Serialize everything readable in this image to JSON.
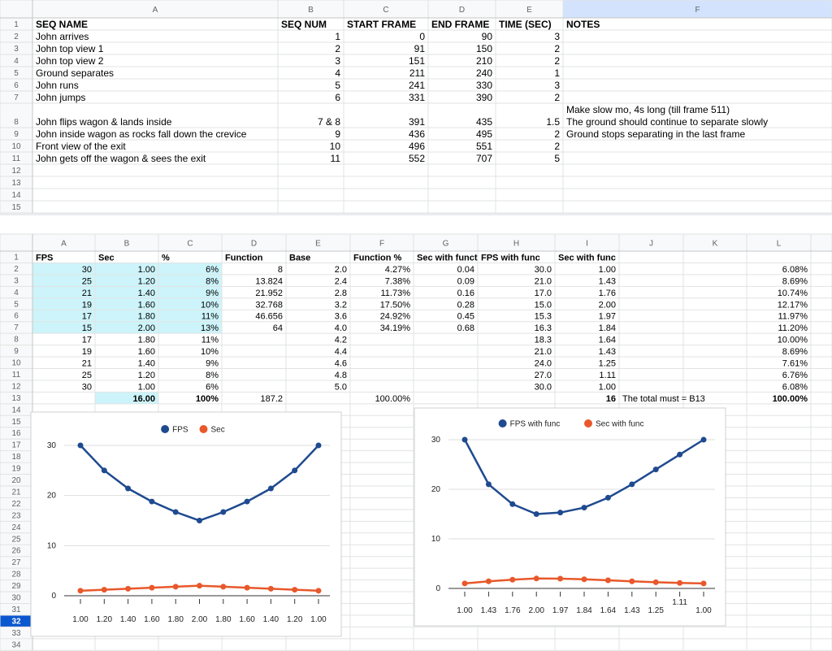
{
  "sheet1": {
    "columns": [
      "A",
      "B",
      "C",
      "D",
      "E",
      "F"
    ],
    "row_numbers": [
      1,
      2,
      3,
      4,
      5,
      6,
      7,
      8,
      9,
      10,
      11,
      12,
      13,
      14,
      15
    ],
    "rows": [
      [
        "SEQ NAME",
        "SEQ NUM",
        "START FRAME",
        "END FRAME",
        "TIME (SEC)",
        "NOTES"
      ],
      [
        "John arrives",
        "1",
        "0",
        "90",
        "3",
        null
      ],
      [
        "John top view 1",
        "2",
        "91",
        "150",
        "2",
        null
      ],
      [
        "John top view 2",
        "3",
        "151",
        "210",
        "2",
        null
      ],
      [
        "Ground separates",
        "4",
        "211",
        "240",
        "1",
        null
      ],
      [
        "John runs",
        "5",
        "241",
        "330",
        "3",
        null
      ],
      [
        "John jumps",
        "6",
        "331",
        "390",
        "2",
        null
      ],
      [
        "John flips wagon & lands inside",
        "7 & 8",
        "391",
        "435",
        "1.5",
        [
          "Make slow mo, 4s long (till frame 511)",
          "The ground should continue to separate slowly"
        ]
      ],
      [
        "John inside wagon as rocks fall down the crevice",
        "9",
        "436",
        "495",
        "2",
        "Ground stops separating in the last frame"
      ],
      [
        "Front view of the exit",
        "10",
        "496",
        "551",
        "2",
        null
      ],
      [
        "John gets off the wagon & sees the exit",
        "11",
        "552",
        "707",
        "5",
        null
      ]
    ]
  },
  "sheet2": {
    "columns": [
      "A",
      "B",
      "C",
      "D",
      "E",
      "F",
      "G",
      "H",
      "I",
      "J",
      "K",
      "L"
    ],
    "row_numbers": [
      1,
      2,
      3,
      4,
      5,
      6,
      7,
      8,
      9,
      10,
      11,
      12,
      13,
      14,
      15,
      16,
      17,
      18,
      19,
      20,
      21,
      22,
      23,
      24,
      25,
      26,
      27,
      28,
      29,
      30,
      31,
      32,
      33,
      34
    ],
    "rows": [
      [
        "FPS",
        "Sec",
        "%",
        "Function",
        "Base",
        "Function %",
        "Sec with funct",
        "FPS with func",
        "Sec with func",
        null,
        null,
        null
      ],
      [
        "30",
        "1.00",
        "6%",
        "8",
        "2.0",
        "4.27%",
        "0.04",
        "30.0",
        "1.00",
        null,
        null,
        "6.08%"
      ],
      [
        "25",
        "1.20",
        "8%",
        "13.824",
        "2.4",
        "7.38%",
        "0.09",
        "21.0",
        "1.43",
        null,
        null,
        "8.69%"
      ],
      [
        "21",
        "1.40",
        "9%",
        "21.952",
        "2.8",
        "11.73%",
        "0.16",
        "17.0",
        "1.76",
        null,
        null,
        "10.74%"
      ],
      [
        "19",
        "1.60",
        "10%",
        "32.768",
        "3.2",
        "17.50%",
        "0.28",
        "15.0",
        "2.00",
        null,
        null,
        "12.17%"
      ],
      [
        "17",
        "1.80",
        "11%",
        "46.656",
        "3.6",
        "24.92%",
        "0.45",
        "15.3",
        "1.97",
        null,
        null,
        "11.97%"
      ],
      [
        "15",
        "2.00",
        "13%",
        "64",
        "4.0",
        "34.19%",
        "0.68",
        "16.3",
        "1.84",
        null,
        null,
        "11.20%"
      ],
      [
        "17",
        "1.80",
        "11%",
        null,
        "4.2",
        null,
        null,
        "18.3",
        "1.64",
        null,
        null,
        "10.00%"
      ],
      [
        "19",
        "1.60",
        "10%",
        null,
        "4.4",
        null,
        null,
        "21.0",
        "1.43",
        null,
        null,
        "8.69%"
      ],
      [
        "21",
        "1.40",
        "9%",
        null,
        "4.6",
        null,
        null,
        "24.0",
        "1.25",
        null,
        null,
        "7.61%"
      ],
      [
        "25",
        "1.20",
        "8%",
        null,
        "4.8",
        null,
        null,
        "27.0",
        "1.11",
        null,
        null,
        "6.76%"
      ],
      [
        "30",
        "1.00",
        "6%",
        null,
        "5.0",
        null,
        null,
        "30.0",
        "1.00",
        null,
        null,
        "6.08%"
      ],
      [
        null,
        "16.00",
        "100%",
        "187.2",
        null,
        "100.00%",
        null,
        null,
        "16",
        "The total must = B13",
        null,
        "100.00%"
      ]
    ]
  },
  "chart_data": [
    {
      "type": "line",
      "legend": "top",
      "grid": true,
      "categories": [
        "1.00",
        "1.20",
        "1.40",
        "1.60",
        "1.80",
        "2.00",
        "1.80",
        "1.60",
        "1.40",
        "1.20",
        "1.00"
      ],
      "series": [
        {
          "name": "FPS",
          "color": "#1f4a8f",
          "values": [
            30,
            25,
            21.4,
            18.8,
            16.7,
            15,
            16.7,
            18.8,
            21.4,
            25,
            30
          ]
        },
        {
          "name": "Sec",
          "color": "#e8582b",
          "values": [
            1,
            1.2,
            1.4,
            1.6,
            1.8,
            2,
            1.8,
            1.6,
            1.4,
            1.2,
            1
          ]
        }
      ],
      "ylim": [
        0,
        30
      ],
      "yticks": [
        0,
        10,
        20,
        30
      ]
    },
    {
      "type": "line",
      "legend": "top",
      "grid": true,
      "categories": [
        "1.00",
        "1.43",
        "1.76",
        "2.00",
        "1.97",
        "1.84",
        "1.64",
        "1.43",
        "1.25",
        "1.11",
        "1.00"
      ],
      "series": [
        {
          "name": "FPS with func",
          "color": "#1f4a8f",
          "values": [
            30,
            21,
            17,
            15,
            15.3,
            16.3,
            18.3,
            21,
            24,
            27,
            30
          ]
        },
        {
          "name": "Sec with func",
          "color": "#e8582b",
          "values": [
            1,
            1.43,
            1.76,
            2,
            1.97,
            1.84,
            1.64,
            1.43,
            1.25,
            1.11,
            1
          ]
        }
      ],
      "ylim": [
        0,
        30
      ],
      "yticks": [
        0,
        10,
        20,
        30
      ]
    }
  ]
}
